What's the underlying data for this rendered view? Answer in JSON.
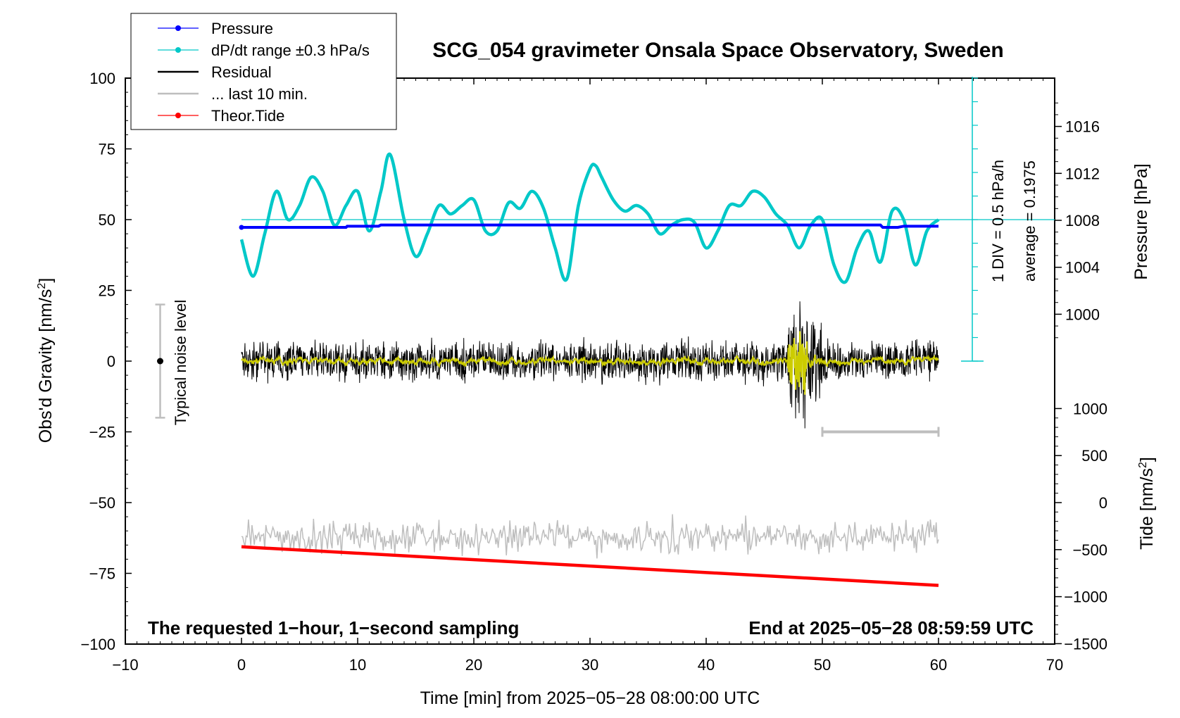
{
  "chart_data": {
    "type": "line",
    "title": "SCG_054 gravimeter Onsala Space Observatory, Sweden",
    "xlabel": "Time [min] from 2025−05−28 08:00:00 UTC",
    "ylabel": "Obs'd Gravity [nm/s",
    "ylabel_sup": "2",
    "ylabel_tail": "]",
    "xlim": [
      -10,
      70
    ],
    "ylim": [
      -100,
      100
    ],
    "x_ticks": [
      "−10",
      "0",
      "10",
      "20",
      "30",
      "40",
      "50",
      "60",
      "70"
    ],
    "y_ticks": [
      "100",
      "75",
      "50",
      "25",
      "0",
      "−25",
      "−50",
      "−75",
      "−100"
    ],
    "pressure_axis": {
      "label": "Pressure [hPa]",
      "ticks": [
        "1016",
        "1012",
        "1008",
        "1004",
        "1000"
      ],
      "values": [
        1016,
        1012,
        1008,
        1004,
        1000
      ]
    },
    "tide_axis": {
      "label": "Tide [nm/s",
      "label_sup": "2",
      "label_tail": "]",
      "ticks": [
        "1000",
        "500",
        "0",
        "−500",
        "−1000",
        "−1500"
      ],
      "values": [
        1000,
        500,
        0,
        -500,
        -1000,
        -1500
      ]
    },
    "legend": {
      "placement": "top-left",
      "entries": [
        {
          "label": "Pressure",
          "color": "#0000ff",
          "marker": true
        },
        {
          "label": "dP/dt range ±0.3 hPa/s",
          "color": "#00c8c8",
          "marker": true
        },
        {
          "label": "Residual",
          "color": "#000000",
          "marker": false
        },
        {
          "label": "... last 10 min.",
          "color": "#bebebe",
          "marker": false
        },
        {
          "label": "Theor.Tide",
          "color": "#ff0000",
          "marker": true
        }
      ]
    },
    "annotations": {
      "bottom_left": "The requested 1−hour, 1−second sampling",
      "bottom_right": "End at 2025−05−28 08:59:59 UTC",
      "noise": "Typical noise level",
      "div": "1 DIV = 0.5 hPa/h",
      "average": "average = 0.1975"
    },
    "series": [
      {
        "name": "Pressure",
        "color": "#0000ff",
        "axis": "pressure",
        "x": [
          0,
          9,
          9.1,
          11.8,
          12,
          55,
          55.2,
          56.5,
          57,
          60
        ],
        "y": [
          1007.4,
          1007.4,
          1007.5,
          1007.5,
          1007.6,
          1007.6,
          1007.4,
          1007.4,
          1007.5,
          1007.5
        ]
      },
      {
        "name": "dP/dt range ±0.3 hPa/s",
        "color": "#00c8c8",
        "axis": "gravity",
        "x": [
          0,
          1,
          2,
          3,
          4,
          5,
          6,
          7,
          8,
          9,
          10,
          11,
          12,
          12.8,
          14,
          15,
          16,
          17,
          18,
          19,
          20,
          21,
          22,
          23,
          24,
          25,
          26,
          27,
          28,
          29,
          30,
          30.5,
          31,
          32,
          33,
          34,
          35,
          36,
          37,
          38,
          39,
          40,
          41,
          42,
          43,
          44,
          45,
          46,
          47,
          48,
          49,
          50,
          51,
          52,
          53,
          54,
          55,
          56,
          57,
          58,
          59,
          60
        ],
        "y": [
          43,
          30,
          45,
          60,
          50,
          55,
          65,
          60,
          48,
          55,
          60,
          46,
          60,
          73,
          50,
          37,
          45,
          55,
          52,
          55,
          57,
          46,
          46,
          56,
          54,
          60,
          54,
          40,
          29,
          55,
          68,
          69,
          65,
          57,
          53,
          55,
          52,
          45,
          48,
          50,
          49,
          40,
          46,
          55,
          55,
          60,
          58,
          52,
          48,
          40,
          48,
          50,
          34,
          28,
          40,
          46,
          35,
          53,
          50,
          34,
          46,
          50
        ]
      },
      {
        "name": "Residual",
        "color": "#000000",
        "axis": "gravity",
        "sampling": "1-second"
      },
      {
        "name": "... last 10 min.",
        "color": "#bebebe",
        "axis": "gravity"
      },
      {
        "name": "Theor.Tide",
        "color": "#ff0000",
        "axis": "tide",
        "x": [
          0,
          60
        ],
        "y": [
          -470,
          -880
        ]
      }
    ],
    "pressure_reference_line": {
      "gravity_value": 50,
      "color": "#00c8c8"
    },
    "noise_level": {
      "x": -7,
      "low": -20,
      "high": 20
    },
    "last_10_min_bar": {
      "x_start": 50,
      "x_end": 60,
      "y": -25
    },
    "yellow_smoothed_residual_color": "#cccc00"
  }
}
